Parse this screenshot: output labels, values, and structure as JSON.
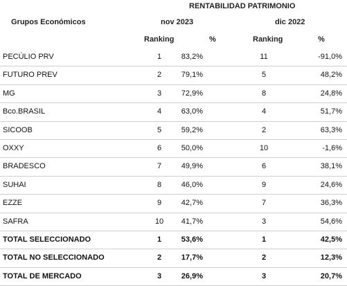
{
  "header": {
    "group_title": "RENTABILIDAD PATRIMONIO",
    "col_label": "Grupos Económicos",
    "period_a": "nov 2023",
    "period_b": "dic 2022",
    "ranking_label": "Ranking",
    "pct_label": "%"
  },
  "rows": [
    {
      "name": "PECÚLIO PRV",
      "r1": "1",
      "p1": "83,2%",
      "r2": "11",
      "p2": "-91,0%"
    },
    {
      "name": "FUTURO PREV",
      "r1": "2",
      "p1": "79,1%",
      "r2": "5",
      "p2": "48,2%"
    },
    {
      "name": "MG",
      "r1": "3",
      "p1": "72,9%",
      "r2": "8",
      "p2": "24,8%"
    },
    {
      "name": "Bco.BRASIL",
      "r1": "4",
      "p1": "63,0%",
      "r2": "4",
      "p2": "51,7%"
    },
    {
      "name": "SICOOB",
      "r1": "5",
      "p1": "59,2%",
      "r2": "2",
      "p2": "63,3%"
    },
    {
      "name": "OXXY",
      "r1": "6",
      "p1": "50,0%",
      "r2": "10",
      "p2": "-1,6%"
    },
    {
      "name": "BRADESCO",
      "r1": "7",
      "p1": "49,9%",
      "r2": "6",
      "p2": "38,1%"
    },
    {
      "name": "SUHAI",
      "r1": "8",
      "p1": "46,0%",
      "r2": "9",
      "p2": "24,6%"
    },
    {
      "name": "EZZE",
      "r1": "9",
      "p1": "42,7%",
      "r2": "7",
      "p2": "36,3%"
    },
    {
      "name": "SAFRA",
      "r1": "10",
      "p1": "41,7%",
      "r2": "3",
      "p2": "54,6%"
    },
    {
      "name": "TOTAL SELECCIONADO",
      "r1": "1",
      "p1": "53,6%",
      "r2": "1",
      "p2": "42,5%"
    },
    {
      "name": "TOTAL NO SELECCIONADO",
      "r1": "2",
      "p1": "17,7%",
      "r2": "2",
      "p2": "12,3%"
    },
    {
      "name": " TOTAL DE MERCADO",
      "r1": "3",
      "p1": "26,9%",
      "r2": "3",
      "p2": "20,7%"
    }
  ]
}
